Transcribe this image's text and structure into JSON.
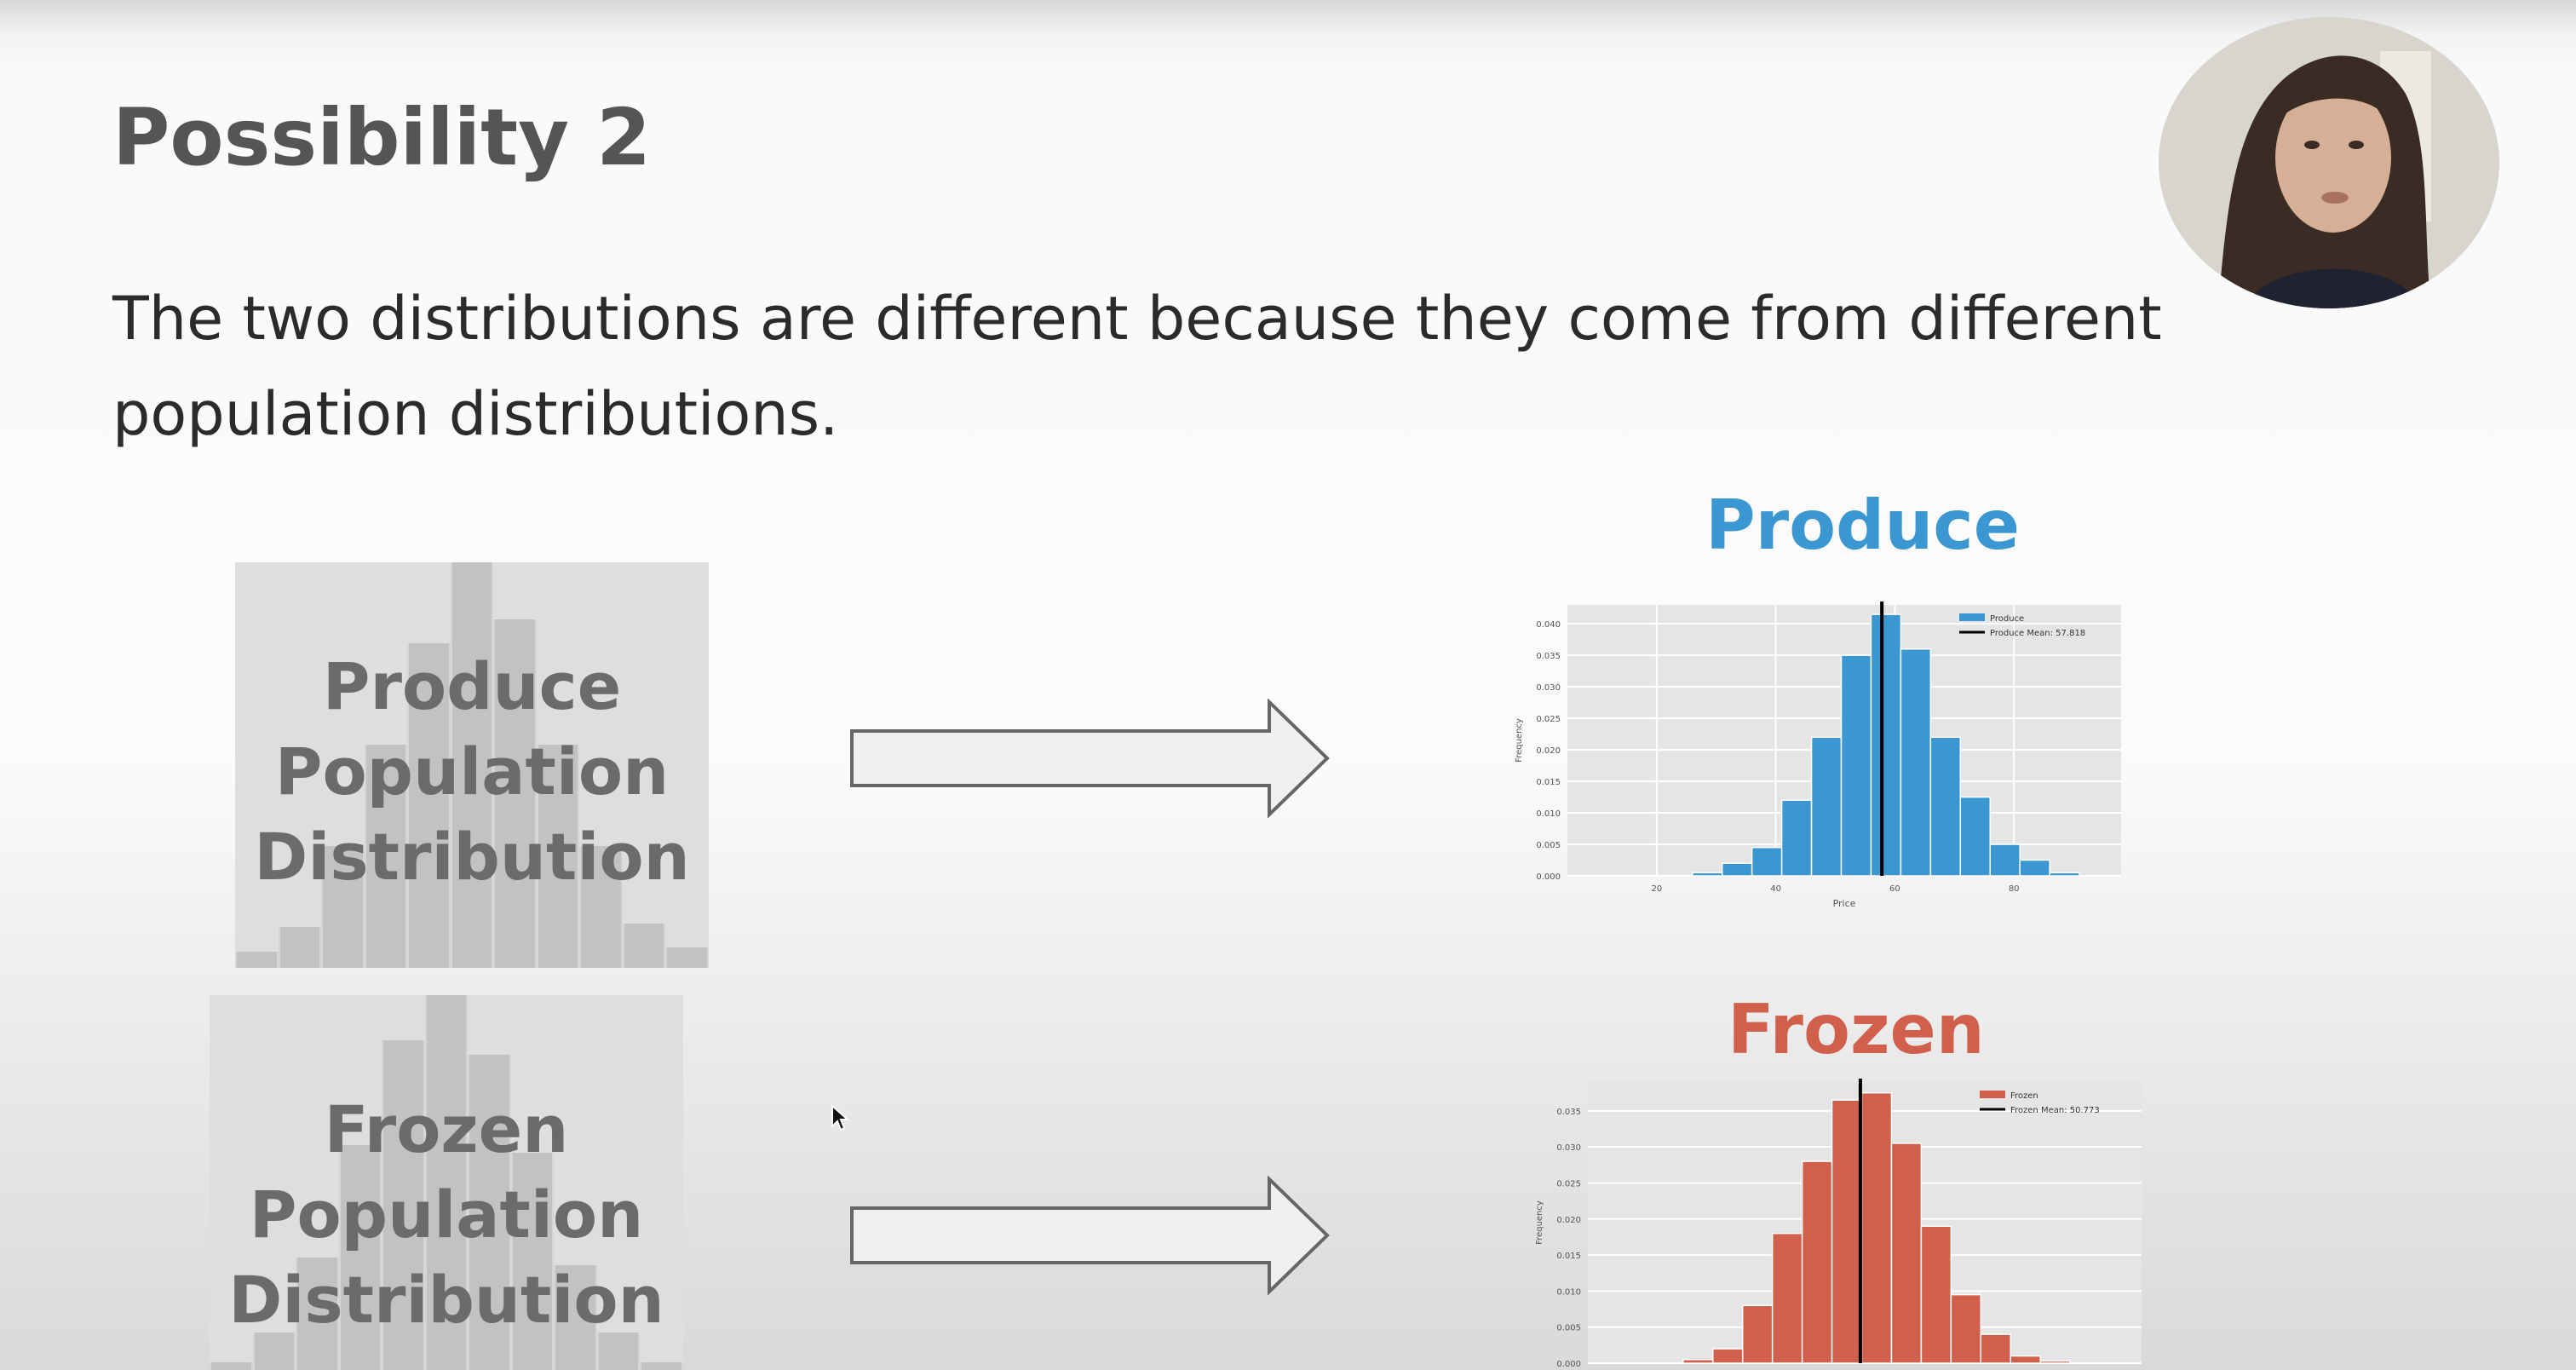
{
  "slide": {
    "title": "Possibility 2",
    "body": "The two distributions are different because they come from different population distributions.",
    "produce_population_lines": [
      "Produce",
      "Population",
      "Distribution"
    ],
    "frozen_population_lines": [
      "Frozen",
      "Population",
      "Distribution"
    ]
  },
  "colors": {
    "produce": "#3a97d1",
    "frozen": "#d0604b",
    "title_text": "#555555",
    "population_text": "#6b6b6b"
  },
  "icons": {
    "arrow": "right-arrow-icon",
    "cursor": "mouse-cursor-icon",
    "webcam": "presenter-webcam"
  },
  "chart_data": [
    {
      "type": "bar",
      "title": "Produce",
      "color": "#3a97d1",
      "xlabel": "Price",
      "ylabel": "Frequency",
      "x_ticks": [
        "20",
        "40",
        "60",
        "80"
      ],
      "y_ticks": [
        "0.000",
        "0.005",
        "0.010",
        "0.015",
        "0.020",
        "0.025",
        "0.030",
        "0.035",
        "0.040"
      ],
      "xlim": [
        5,
        98
      ],
      "ylim": [
        0,
        0.043
      ],
      "bin_start": 26,
      "bin_width": 5,
      "values": [
        0.0005,
        0.002,
        0.0045,
        0.012,
        0.022,
        0.035,
        0.0415,
        0.036,
        0.022,
        0.0125,
        0.005,
        0.0025,
        0.0005
      ],
      "mean": 57.818,
      "legend": [
        "Produce",
        "Produce Mean: 57.818"
      ],
      "legend_position": "top-right",
      "grid": true
    },
    {
      "type": "bar",
      "title": "Frozen",
      "color": "#d0604b",
      "xlabel": "",
      "ylabel": "Frequency",
      "x_ticks": [],
      "y_ticks": [
        "0.000",
        "0.005",
        "0.010",
        "0.015",
        "0.020",
        "0.025",
        "0.030",
        "0.035"
      ],
      "xlim": [
        5,
        98
      ],
      "ylim": [
        0,
        0.039
      ],
      "bin_start": 21,
      "bin_width": 5,
      "values": [
        0.0005,
        0.002,
        0.008,
        0.018,
        0.028,
        0.0365,
        0.0375,
        0.0305,
        0.019,
        0.0095,
        0.004,
        0.001,
        0.0003
      ],
      "mean": 50.773,
      "legend": [
        "Frozen",
        "Frozen Mean: 50.773"
      ],
      "legend_position": "top-right",
      "grid": true
    }
  ]
}
